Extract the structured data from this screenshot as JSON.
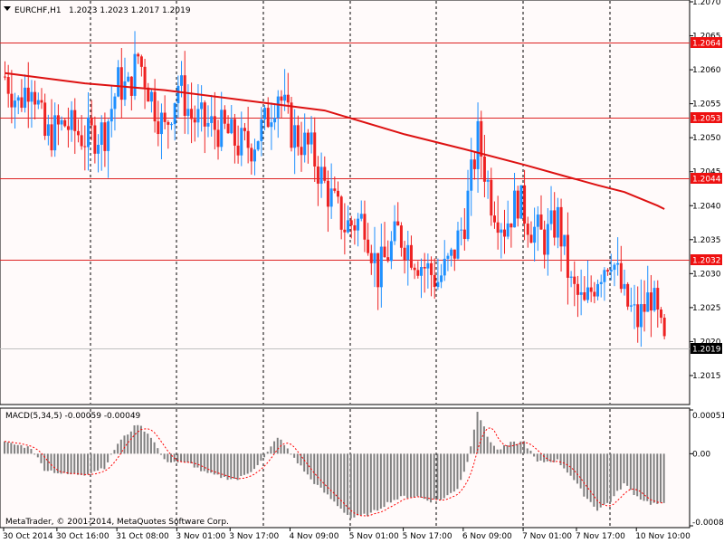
{
  "header": {
    "symbol": "EURCHF,H1",
    "ohlc": "1.2023 1.2023 1.2017 1.2019"
  },
  "macd_header": "MACD(5,34,5) -0.00059 -0.00049",
  "watermark": "MetaTrader, © 2001-2014, MetaQuotes Software Corp.",
  "colors": {
    "background": "#fffafa",
    "bull": "#1e90ff",
    "bear": "#ee2222",
    "ma": "#dd1111",
    "level_line": "#dd2222",
    "level_label_bg": "#ee1111",
    "current_label_bg": "#000000",
    "histogram": "#808080",
    "signal": "#ff0000",
    "grid": "#000000"
  },
  "chart_data": [
    {
      "type": "candlestick",
      "title": "EURCHF,H1",
      "price_axis_ticks": [
        "1.2070",
        "1.2065",
        "1.2060",
        "1.2055",
        "1.2050",
        "1.2045",
        "1.2040",
        "1.2035",
        "1.2030",
        "1.2025",
        "1.2020",
        "1.2015"
      ],
      "ylim": [
        1.2011,
        1.207
      ],
      "horizontal_levels": [
        {
          "label": "1.2064",
          "value": 1.2064
        },
        {
          "label": "1.2053",
          "value": 1.2053
        },
        {
          "label": "1.2044",
          "value": 1.2044
        },
        {
          "label": "1.2032",
          "value": 1.2032
        }
      ],
      "current_price": {
        "label": "1.2019",
        "value": 1.2019
      },
      "x_ticks": [
        "30 Oct 2014",
        "30 Oct 16:00",
        "31 Oct 08:00",
        "3 Nov 01:00",
        "3 Nov 17:00",
        "4 Nov 09:00",
        "5 Nov 01:00",
        "5 Nov 17:00",
        "6 Nov 09:00",
        "7 Nov 01:00",
        "7 Nov 17:00",
        "10 Nov 10:00"
      ],
      "moving_average": {
        "points": [
          {
            "bar": 0,
            "value": 1.20595
          },
          {
            "bar": 24,
            "value": 1.2058
          },
          {
            "bar": 48,
            "value": 1.2057
          },
          {
            "bar": 72,
            "value": 1.20555
          },
          {
            "bar": 96,
            "value": 1.2054
          },
          {
            "bar": 120,
            "value": 1.20505
          },
          {
            "bar": 138,
            "value": 1.20483
          },
          {
            "bar": 156,
            "value": 1.2046
          },
          {
            "bar": 167,
            "value": 1.20445
          },
          {
            "bar": 178,
            "value": 1.2043
          },
          {
            "bar": 186,
            "value": 1.2042
          },
          {
            "bar": 196,
            "value": 1.204
          },
          {
            "bar": 198,
            "value": 1.20395
          }
        ]
      },
      "anchors": [
        [
          0,
          1.2059
        ],
        [
          4,
          1.2055
        ],
        [
          8,
          1.2059
        ],
        [
          12,
          1.205
        ],
        [
          18,
          1.2052
        ],
        [
          24,
          1.205
        ],
        [
          30,
          1.2051
        ],
        [
          34,
          1.2058
        ],
        [
          37,
          1.2057
        ],
        [
          40,
          1.2062
        ],
        [
          44,
          1.2056
        ],
        [
          48,
          1.2051
        ],
        [
          52,
          1.2058
        ],
        [
          56,
          1.2053
        ],
        [
          60,
          1.2052
        ],
        [
          66,
          1.2051
        ],
        [
          70,
          1.2049
        ],
        [
          74,
          1.2049
        ],
        [
          78,
          1.2052
        ],
        [
          82,
          1.2057
        ],
        [
          86,
          1.2051
        ],
        [
          92,
          1.2048
        ],
        [
          96,
          1.2043
        ],
        [
          102,
          1.2037
        ],
        [
          108,
          1.2038
        ],
        [
          112,
          1.203
        ],
        [
          118,
          1.2036
        ],
        [
          124,
          1.2032
        ],
        [
          130,
          1.2029
        ],
        [
          134,
          1.2032
        ],
        [
          138,
          1.2038
        ],
        [
          142,
          1.205
        ],
        [
          146,
          1.2041
        ],
        [
          150,
          1.2037
        ],
        [
          154,
          1.2041
        ],
        [
          158,
          1.2037
        ],
        [
          162,
          1.2035
        ],
        [
          166,
          1.2038
        ],
        [
          170,
          1.2028
        ],
        [
          174,
          1.2025
        ],
        [
          178,
          1.203
        ],
        [
          182,
          1.2033
        ],
        [
          186,
          1.2026
        ],
        [
          190,
          1.2023
        ],
        [
          194,
          1.2027
        ],
        [
          198,
          1.2019
        ]
      ],
      "bars_count": 199
    },
    {
      "type": "bar",
      "title": "MACD(5,34,5) -0.00059 -0.00049",
      "axis_ticks": [
        "0.00051",
        "0.00",
        "-0.00084"
      ],
      "ylim": [
        -0.00084,
        0.00051
      ],
      "macd_anchors": [
        [
          0,
          0.00013
        ],
        [
          8,
          7e-05
        ],
        [
          12,
          -0.00018
        ],
        [
          18,
          -0.00024
        ],
        [
          24,
          -0.00024
        ],
        [
          30,
          -0.00016
        ],
        [
          34,
          0.00012
        ],
        [
          40,
          0.00035
        ],
        [
          44,
          0.0002
        ],
        [
          48,
          -8e-05
        ],
        [
          56,
          -0.00012
        ],
        [
          60,
          -0.00022
        ],
        [
          66,
          -0.00028
        ],
        [
          70,
          -0.0003
        ],
        [
          74,
          -0.0002
        ],
        [
          78,
          -5e-05
        ],
        [
          82,
          0.0002
        ],
        [
          86,
          0.0
        ],
        [
          92,
          -0.0003
        ],
        [
          96,
          -0.00045
        ],
        [
          100,
          -0.0006
        ],
        [
          104,
          -0.00075
        ],
        [
          110,
          -0.0007
        ],
        [
          116,
          -0.00055
        ],
        [
          120,
          -0.0005
        ],
        [
          124,
          -0.0005
        ],
        [
          128,
          -0.00055
        ],
        [
          132,
          -0.00052
        ],
        [
          136,
          -0.0004
        ],
        [
          139,
          -0.0001
        ],
        [
          142,
          0.0005
        ],
        [
          145,
          0.0002
        ],
        [
          148,
          4e-05
        ],
        [
          152,
          0.00012
        ],
        [
          156,
          0.00014
        ],
        [
          160,
          -0.0001
        ],
        [
          166,
          -8e-05
        ],
        [
          170,
          -0.00025
        ],
        [
          174,
          -0.00048
        ],
        [
          178,
          -0.00065
        ],
        [
          182,
          -0.00055
        ],
        [
          186,
          -0.00035
        ],
        [
          190,
          -0.0005
        ],
        [
          194,
          -0.00058
        ],
        [
          198,
          -0.00059
        ]
      ]
    }
  ]
}
